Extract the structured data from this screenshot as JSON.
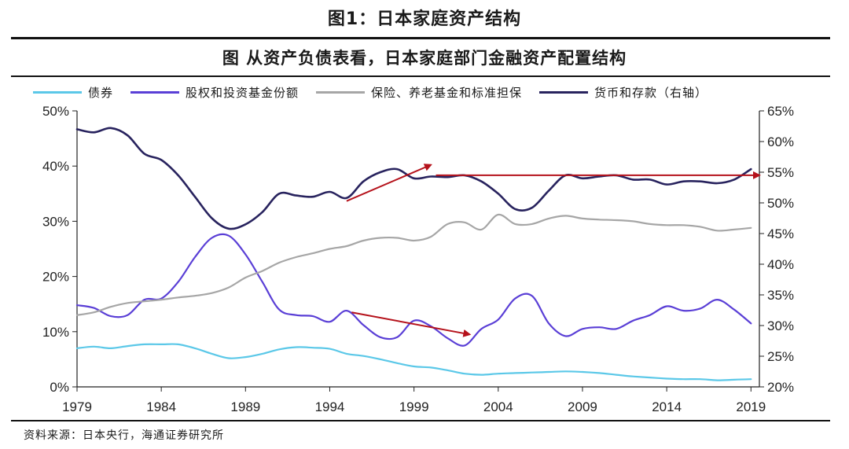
{
  "figure_title": "图1：日本家庭资产结构",
  "source_note": "资料来源：日本央行，海通证券研究所",
  "chart_data": {
    "type": "line",
    "title": "图 从资产负债表看，日本家庭部门金融资产配置结构",
    "xlabel": "",
    "ylabel": "",
    "x_ticks": [
      "1979",
      "1984",
      "1989",
      "1994",
      "1999",
      "2004",
      "2009",
      "2014",
      "2019"
    ],
    "xlim": [
      1979,
      2019.5
    ],
    "y_left": {
      "lim": [
        0,
        50
      ],
      "ticks": [
        "0%",
        "10%",
        "20%",
        "30%",
        "40%",
        "50%"
      ]
    },
    "y_right": {
      "lim": [
        20,
        65
      ],
      "ticks": [
        "20%",
        "25%",
        "30%",
        "35%",
        "40%",
        "45%",
        "50%",
        "55%",
        "60%",
        "65%"
      ]
    },
    "grid": false,
    "legend_position": "top",
    "series": [
      {
        "name": "债券",
        "axis": "left",
        "color": "#5bc8e8",
        "x": [
          1979,
          1980,
          1981,
          1982,
          1983,
          1984,
          1985,
          1986,
          1987,
          1988,
          1989,
          1990,
          1991,
          1992,
          1993,
          1994,
          1995,
          1996,
          1997,
          1998,
          1999,
          2000,
          2001,
          2002,
          2003,
          2004,
          2005,
          2006,
          2007,
          2008,
          2009,
          2010,
          2011,
          2012,
          2013,
          2014,
          2015,
          2016,
          2017,
          2018,
          2019
        ],
        "values": [
          7.0,
          7.3,
          7.0,
          7.4,
          7.7,
          7.7,
          7.7,
          7.0,
          6.0,
          5.2,
          5.4,
          6.0,
          6.8,
          7.2,
          7.1,
          6.9,
          6.0,
          5.6,
          5.0,
          4.3,
          3.7,
          3.5,
          3.0,
          2.4,
          2.2,
          2.4,
          2.5,
          2.6,
          2.7,
          2.8,
          2.7,
          2.5,
          2.2,
          1.9,
          1.7,
          1.5,
          1.4,
          1.4,
          1.2,
          1.3,
          1.4
        ]
      },
      {
        "name": "股权和投资基金份额",
        "axis": "left",
        "color": "#5a3fd6",
        "x": [
          1979,
          1980,
          1981,
          1982,
          1983,
          1984,
          1985,
          1986,
          1987,
          1988,
          1989,
          1990,
          1991,
          1992,
          1993,
          1994,
          1995,
          1996,
          1997,
          1998,
          1999,
          2000,
          2001,
          2002,
          2003,
          2004,
          2005,
          2006,
          2007,
          2008,
          2009,
          2010,
          2011,
          2012,
          2013,
          2014,
          2015,
          2016,
          2017,
          2018,
          2019
        ],
        "values": [
          14.8,
          14.3,
          12.8,
          13.0,
          15.8,
          16.0,
          19.0,
          23.5,
          27.0,
          27.4,
          24.0,
          19.0,
          14.0,
          13.0,
          12.8,
          11.8,
          13.8,
          11.2,
          9.0,
          9.0,
          12.0,
          11.0,
          8.8,
          7.5,
          10.5,
          12.2,
          16.0,
          16.5,
          11.5,
          9.2,
          10.5,
          10.8,
          10.5,
          12.0,
          13.0,
          14.6,
          13.8,
          14.2,
          15.8,
          14.0,
          11.5
        ]
      },
      {
        "name": "保险、养老基金和标准担保",
        "axis": "left",
        "color": "#a6a6a6",
        "x": [
          1979,
          1980,
          1981,
          1982,
          1983,
          1984,
          1985,
          1986,
          1987,
          1988,
          1989,
          1990,
          1991,
          1992,
          1993,
          1994,
          1995,
          1996,
          1997,
          1998,
          1999,
          2000,
          2001,
          2002,
          2003,
          2004,
          2005,
          2006,
          2007,
          2008,
          2009,
          2010,
          2011,
          2012,
          2013,
          2014,
          2015,
          2016,
          2017,
          2018,
          2019
        ],
        "values": [
          13.0,
          13.5,
          14.5,
          15.2,
          15.5,
          15.8,
          16.2,
          16.5,
          17.0,
          18.0,
          19.8,
          21.0,
          22.5,
          23.5,
          24.2,
          25.0,
          25.5,
          26.5,
          27.0,
          27.0,
          26.5,
          27.2,
          29.5,
          29.8,
          28.5,
          31.2,
          29.5,
          29.5,
          30.5,
          31.0,
          30.5,
          30.3,
          30.2,
          30.0,
          29.5,
          29.3,
          29.3,
          29.0,
          28.3,
          28.5,
          28.8
        ]
      },
      {
        "name": "货币和存款（右轴）",
        "axis": "right",
        "color": "#28235e",
        "x": [
          1979,
          1980,
          1981,
          1982,
          1983,
          1984,
          1985,
          1986,
          1987,
          1988,
          1989,
          1990,
          1991,
          1992,
          1993,
          1994,
          1995,
          1996,
          1997,
          1998,
          1999,
          2000,
          2001,
          2002,
          2003,
          2004,
          2005,
          2006,
          2007,
          2008,
          2009,
          2010,
          2011,
          2012,
          2013,
          2014,
          2015,
          2016,
          2017,
          2018,
          2019
        ],
        "values": [
          62.0,
          61.5,
          62.2,
          61.0,
          58.0,
          57.0,
          54.5,
          51.0,
          47.5,
          45.8,
          46.5,
          48.5,
          51.5,
          51.2,
          51.0,
          51.8,
          50.8,
          53.5,
          55.0,
          55.5,
          54.0,
          54.3,
          54.2,
          54.5,
          53.5,
          51.5,
          49.0,
          49.2,
          52.0,
          54.5,
          54.0,
          54.3,
          54.5,
          53.8,
          53.8,
          53.0,
          53.5,
          53.5,
          53.2,
          53.8,
          55.5
        ]
      }
    ],
    "annotations": [
      {
        "type": "arrow",
        "color": "#b5121b",
        "from": [
          1995.0,
          50.3
        ],
        "to": [
          2000.0,
          56.2
        ],
        "axis": "right"
      },
      {
        "type": "arrow",
        "color": "#b5121b",
        "from": [
          2000.3,
          54.5
        ],
        "to": [
          2019.5,
          54.5
        ],
        "axis": "right"
      },
      {
        "type": "arrow",
        "color": "#b5121b",
        "from": [
          1995.3,
          13.5
        ],
        "to": [
          2002.3,
          9.5
        ],
        "axis": "left"
      }
    ]
  }
}
